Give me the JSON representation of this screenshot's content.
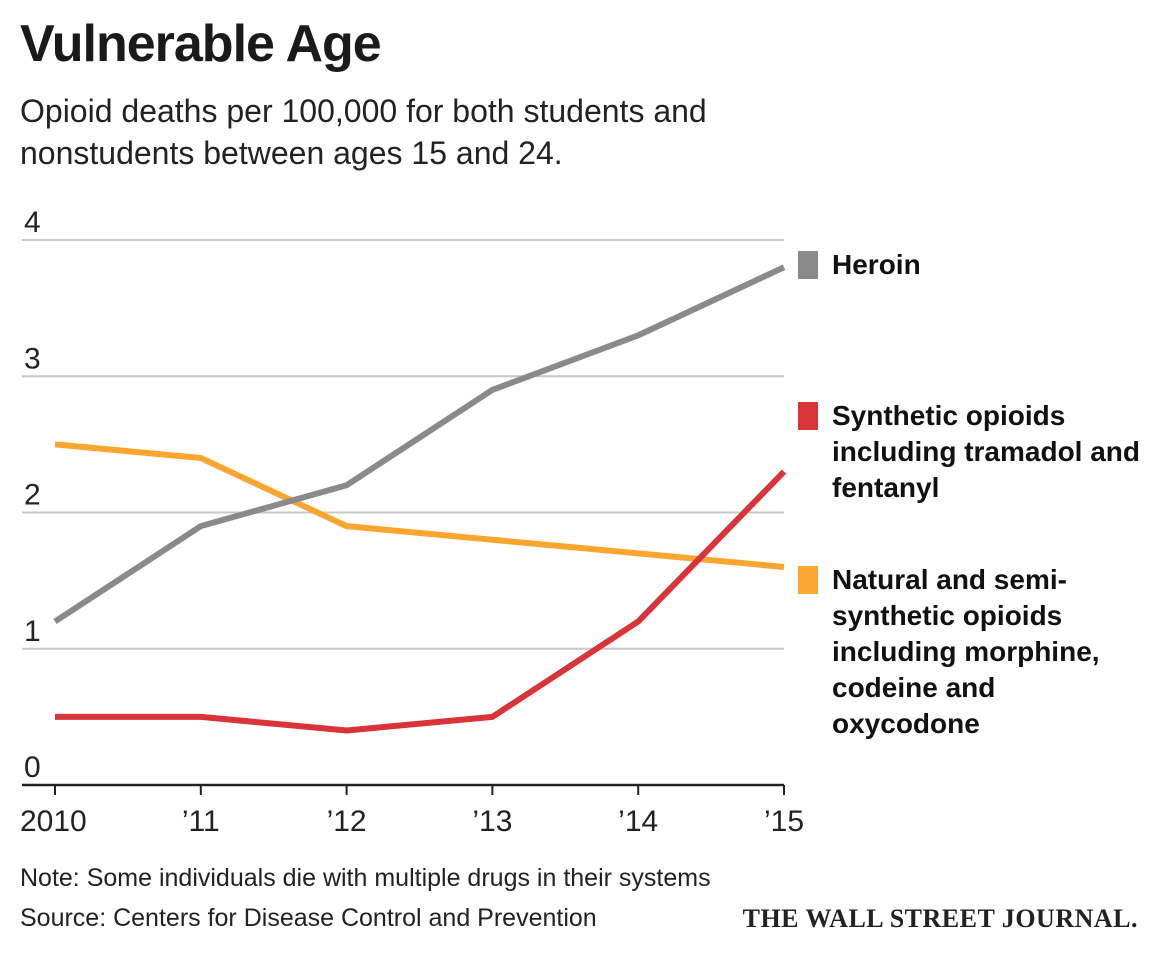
{
  "chart_data": {
    "type": "line",
    "title": "Vulnerable Age",
    "subtitle": "Opioid deaths per 100,000 for both students and nonstudents between ages 15 and 24.",
    "x": [
      2010,
      2011,
      2012,
      2013,
      2014,
      2015
    ],
    "x_tick_labels": [
      "2010",
      "’11",
      "’12",
      "’13",
      "’14",
      "’15"
    ],
    "y_tick_labels": [
      "0",
      "1",
      "2",
      "3",
      "4"
    ],
    "ylim": [
      0,
      4
    ],
    "grid": true,
    "legend_placement": "right",
    "series": [
      {
        "name": "Heroin",
        "color": "#8a8a8a",
        "values": [
          1.2,
          1.9,
          2.2,
          2.9,
          3.3,
          3.8
        ]
      },
      {
        "name": "Synthetic opioids including tramadol and fentanyl",
        "color": "#d9343a",
        "values": [
          0.5,
          0.5,
          0.4,
          0.5,
          1.2,
          2.3
        ]
      },
      {
        "name": "Natural and semi-synthetic opioids including morphine, codeine and oxycodone",
        "color": "#f9a630",
        "values": [
          2.5,
          2.4,
          1.9,
          1.8,
          1.7,
          1.6
        ]
      }
    ]
  },
  "footer": {
    "note": "Note: Some individuals die with multiple drugs in their systems",
    "source": "Source: Centers for Disease Control and Prevention",
    "publisher": "THE WALL STREET JOURNAL."
  }
}
